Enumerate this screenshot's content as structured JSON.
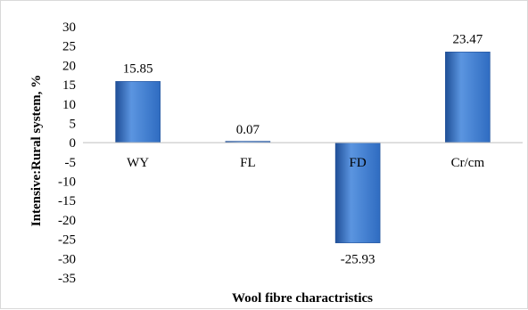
{
  "chart_data": {
    "type": "bar",
    "categories": [
      "WY",
      "FL",
      "FD",
      "Cr/cm"
    ],
    "values": [
      15.85,
      0.07,
      -25.93,
      23.47
    ],
    "value_labels": [
      "15.85",
      "0.07",
      "-25.93",
      "23.47"
    ],
    "title": "",
    "xlabel": "Wool fibre charactristics",
    "ylabel": "Intensive:Rural system, %",
    "ylim": [
      -35,
      30
    ],
    "ytick_step": 5,
    "grid": false,
    "legend": "none",
    "bar_color": "#2f6cc1",
    "bar_color_light": "#5b95e0",
    "bar_color_dark": "#1f4f97"
  }
}
